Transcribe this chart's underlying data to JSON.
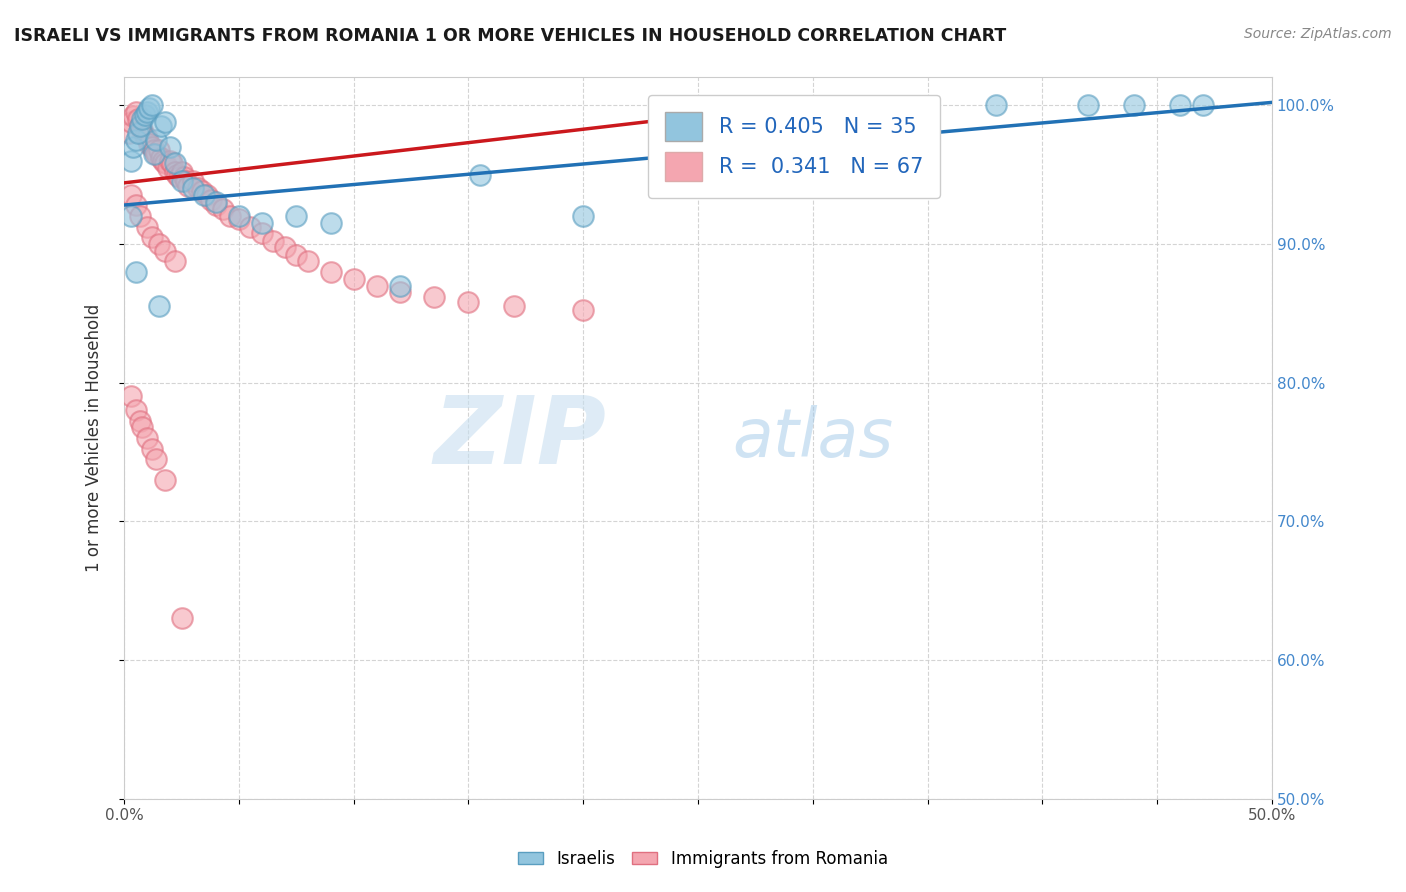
{
  "title": "ISRAELI VS IMMIGRANTS FROM ROMANIA 1 OR MORE VEHICLES IN HOUSEHOLD CORRELATION CHART",
  "source": "Source: ZipAtlas.com",
  "ylabel": "1 or more Vehicles in Household",
  "xlim": [
    0.0,
    0.5
  ],
  "ylim": [
    0.5,
    1.02
  ],
  "blue_color": "#92c5de",
  "pink_color": "#f4a6b0",
  "trend_blue": "#2171b5",
  "trend_pink": "#cb181d",
  "R_blue": 0.405,
  "N_blue": 35,
  "R_pink": 0.341,
  "N_pink": 67,
  "blue_x": [
    0.003,
    0.004,
    0.005,
    0.006,
    0.007,
    0.008,
    0.009,
    0.01,
    0.011,
    0.012,
    0.013,
    0.014,
    0.016,
    0.018,
    0.02,
    0.022,
    0.025,
    0.03,
    0.035,
    0.04,
    0.05,
    0.06,
    0.075,
    0.09,
    0.12,
    0.155,
    0.2,
    0.38,
    0.42,
    0.44,
    0.46,
    0.47,
    0.003,
    0.005,
    0.015
  ],
  "blue_y": [
    0.96,
    0.97,
    0.975,
    0.98,
    0.985,
    0.99,
    0.993,
    0.995,
    0.998,
    1.0,
    0.965,
    0.975,
    0.985,
    0.988,
    0.97,
    0.958,
    0.945,
    0.94,
    0.935,
    0.93,
    0.92,
    0.915,
    0.92,
    0.915,
    0.87,
    0.95,
    0.92,
    1.0,
    1.0,
    1.0,
    1.0,
    1.0,
    0.92,
    0.88,
    0.855
  ],
  "pink_x": [
    0.002,
    0.003,
    0.004,
    0.005,
    0.006,
    0.007,
    0.008,
    0.009,
    0.01,
    0.011,
    0.012,
    0.013,
    0.014,
    0.015,
    0.016,
    0.017,
    0.018,
    0.019,
    0.02,
    0.021,
    0.022,
    0.023,
    0.024,
    0.025,
    0.026,
    0.027,
    0.028,
    0.03,
    0.032,
    0.034,
    0.036,
    0.038,
    0.04,
    0.043,
    0.046,
    0.05,
    0.055,
    0.06,
    0.065,
    0.07,
    0.075,
    0.08,
    0.09,
    0.1,
    0.11,
    0.12,
    0.135,
    0.15,
    0.17,
    0.2,
    0.003,
    0.005,
    0.007,
    0.01,
    0.012,
    0.015,
    0.018,
    0.022,
    0.003,
    0.005,
    0.007,
    0.008,
    0.01,
    0.012,
    0.014,
    0.018,
    0.025
  ],
  "pink_y": [
    0.98,
    0.988,
    0.992,
    0.995,
    0.99,
    0.985,
    0.982,
    0.978,
    0.976,
    0.972,
    0.97,
    0.968,
    0.965,
    0.968,
    0.962,
    0.96,
    0.958,
    0.955,
    0.96,
    0.958,
    0.952,
    0.95,
    0.948,
    0.952,
    0.948,
    0.945,
    0.942,
    0.945,
    0.94,
    0.938,
    0.935,
    0.932,
    0.928,
    0.925,
    0.92,
    0.918,
    0.912,
    0.908,
    0.902,
    0.898,
    0.892,
    0.888,
    0.88,
    0.875,
    0.87,
    0.865,
    0.862,
    0.858,
    0.855,
    0.852,
    0.935,
    0.928,
    0.92,
    0.912,
    0.905,
    0.9,
    0.895,
    0.888,
    0.79,
    0.78,
    0.772,
    0.768,
    0.76,
    0.752,
    0.745,
    0.73,
    0.63
  ],
  "watermark_zip": "ZIP",
  "watermark_atlas": "atlas",
  "bg_color": "#ffffff",
  "grid_color": "#d0d0d0"
}
